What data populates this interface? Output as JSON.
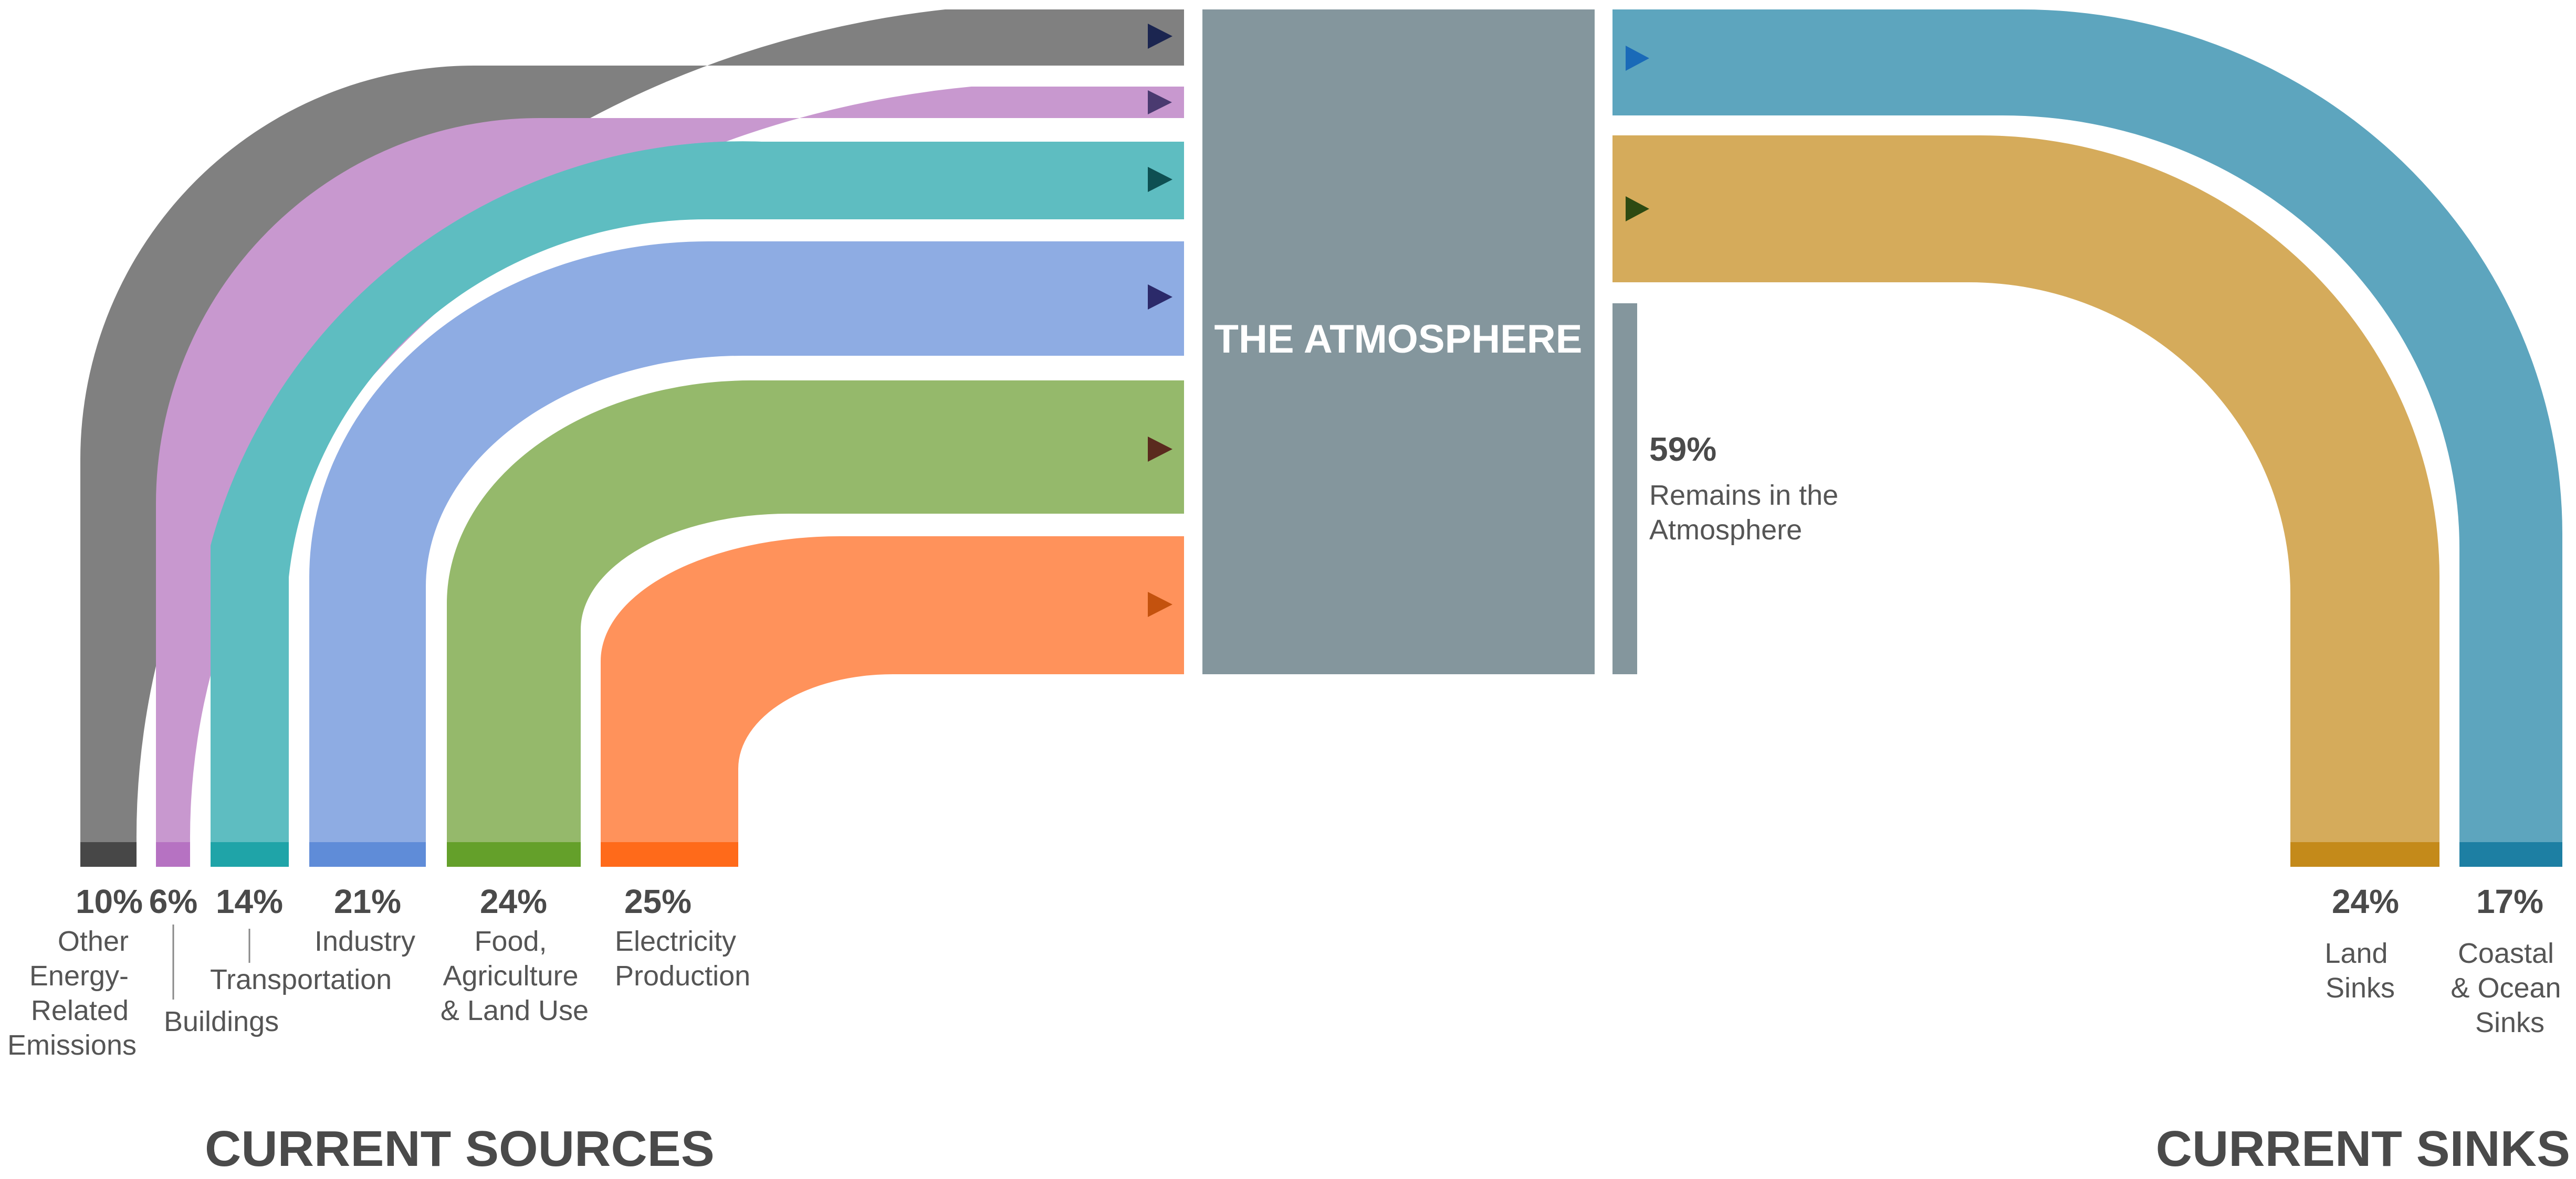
{
  "atmosphere": {
    "label": "THE ATMOSPHERE",
    "color": "#84969d",
    "remains_pct": "59%",
    "remains_label_lines": [
      "Remains in the",
      "Atmosphere"
    ]
  },
  "headings": {
    "sources": "CURRENT SOURCES",
    "sinks": "CURRENT SINKS"
  },
  "sources": [
    {
      "id": "other-energy",
      "pct": "10%",
      "value": 10,
      "label_lines": [
        "Other",
        "Energy-",
        "Related",
        "Emissions"
      ],
      "color": "#808080",
      "base_color": "#474747",
      "arrow_color": "#1b2550"
    },
    {
      "id": "buildings",
      "pct": "6%",
      "value": 6,
      "label_lines": [
        "Buildings"
      ],
      "color": "#c898cf",
      "base_color": "#b672c2",
      "arrow_color": "#4a3a70"
    },
    {
      "id": "transportation",
      "pct": "14%",
      "value": 14,
      "label_lines": [
        "Transportation"
      ],
      "color": "#5ebdc1",
      "base_color": "#1fa4a8",
      "arrow_color": "#0e4f52"
    },
    {
      "id": "industry",
      "pct": "21%",
      "value": 21,
      "label_lines": [
        "Industry"
      ],
      "color": "#8eace3",
      "base_color": "#5f8cd8",
      "arrow_color": "#2b2a6a"
    },
    {
      "id": "food-agriculture",
      "pct": "24%",
      "value": 24,
      "label_lines": [
        "Food,",
        "Agriculture",
        "& Land Use"
      ],
      "color": "#95b96b",
      "base_color": "#64a02a",
      "arrow_color": "#5a2a1e"
    },
    {
      "id": "electricity",
      "pct": "25%",
      "value": 25,
      "label_lines": [
        "Electricity",
        "Production"
      ],
      "color": "#ff925b",
      "base_color": "#ff6a1a",
      "arrow_color": "#c4520e"
    }
  ],
  "sinks": [
    {
      "id": "land-sinks",
      "pct": "24%",
      "value": 24,
      "label_lines": [
        "Land",
        "Sinks"
      ],
      "color": "#d5ab5b",
      "base_color": "#c48a1a",
      "arrow_color": "#2d4a12"
    },
    {
      "id": "coastal-ocean-sinks",
      "pct": "17%",
      "value": 17,
      "label_lines": [
        "Coastal",
        "& Ocean",
        "Sinks"
      ],
      "color": "#5da5be",
      "base_color": "#1d7fa3",
      "arrow_color": "#1a6ab8"
    }
  ]
}
